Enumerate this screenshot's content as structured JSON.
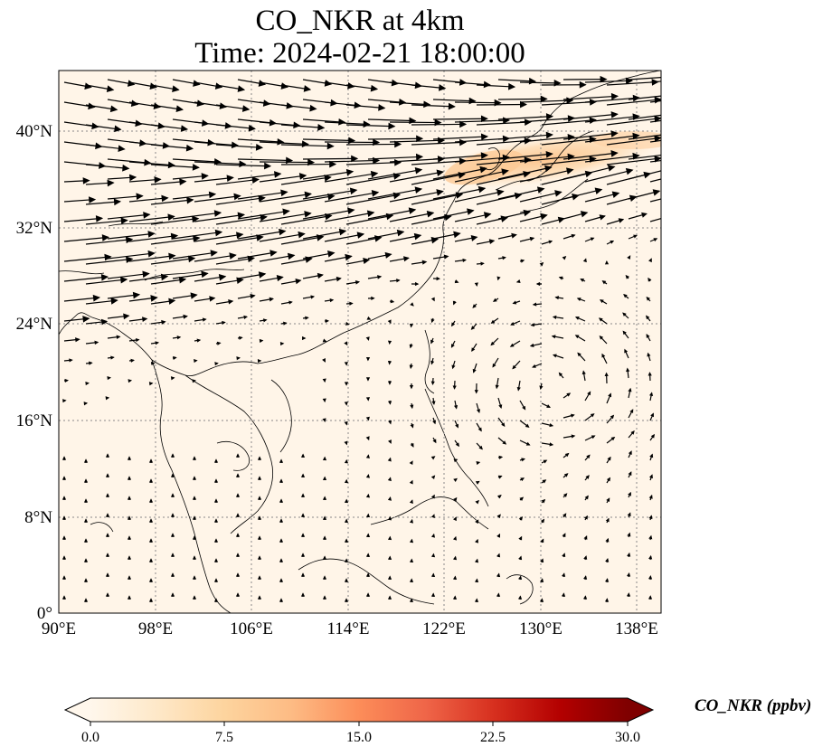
{
  "title": {
    "line1": "CO_NKR at 4km",
    "line2": "Time: 2024-02-21 18:00:00"
  },
  "map": {
    "lon_range": [
      90,
      140
    ],
    "lat_range": [
      0,
      45
    ],
    "lat_ticks": [
      "0°",
      "8°N",
      "16°N",
      "24°N",
      "32°N",
      "40°N"
    ],
    "lon_ticks": [
      "90°E",
      "98°E",
      "106°E",
      "114°E",
      "122°E",
      "130°E",
      "138°E"
    ],
    "gridlines": true,
    "background_color": "#fff5e8",
    "plume_color": "#fdcf9d",
    "coastline_color": "#000000",
    "wind_vectors": "quiver",
    "concentration_field": {
      "background_ppbv": 1,
      "plume": {
        "lon_range": [
          123,
          140
        ],
        "lat_range": [
          35,
          40
        ],
        "max_ppbv": 9
      }
    }
  },
  "colorbar": {
    "label": "CO_NKR (ppbv)",
    "ticks": [
      "0.0",
      "7.5",
      "15.0",
      "22.5",
      "30.0"
    ],
    "range": [
      0,
      30
    ],
    "extend": "both",
    "colormap": "OrRd",
    "colors": [
      "#fff7ec",
      "#fee8c8",
      "#fdd49e",
      "#fdbb84",
      "#fc8d59",
      "#ef6548",
      "#d7301f",
      "#b30000",
      "#7f0000"
    ]
  }
}
